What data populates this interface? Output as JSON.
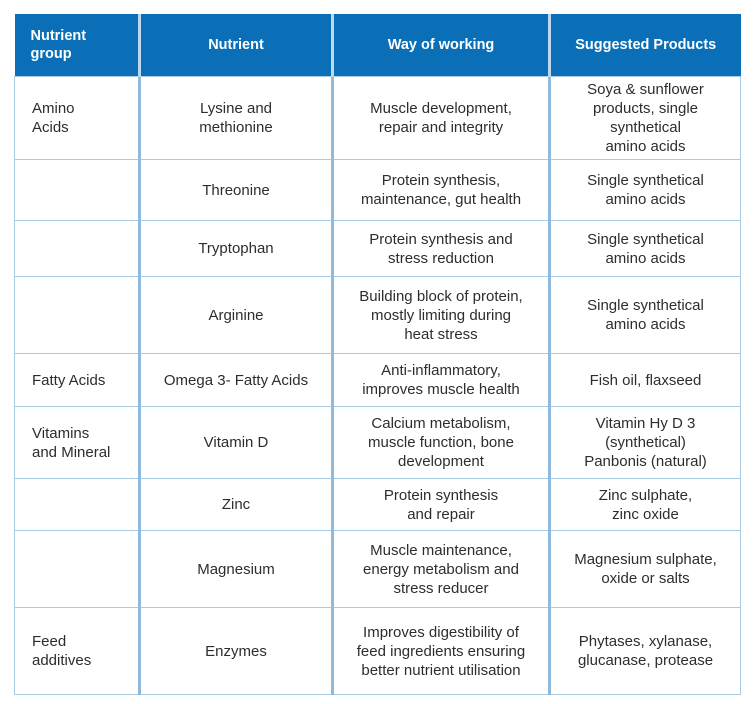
{
  "table": {
    "headers": [
      "Nutrient\ngroup",
      "Nutrient",
      "Way of working",
      "Suggested Products"
    ],
    "rows": [
      [
        "Amino\nAcids",
        "Lysine and\nmethionine",
        "Muscle development,\nrepair and integrity",
        "Soya & sunflower\nproducts, single\nsynthetical\namino acids"
      ],
      [
        "",
        "Threonine",
        "Protein synthesis,\nmaintenance, gut health",
        "Single synthetical\namino acids"
      ],
      [
        "",
        "Tryptophan",
        "Protein synthesis and\nstress reduction",
        "Single synthetical\namino acids"
      ],
      [
        "",
        "Arginine",
        "Building block of protein,\nmostly limiting during\nheat stress",
        "Single synthetical\namino acids"
      ],
      [
        "Fatty Acids",
        "Omega 3- Fatty Acids",
        "Anti-inflammatory,\nimproves muscle health",
        "Fish oil, flaxseed"
      ],
      [
        "Vitamins\nand Mineral",
        "Vitamin D",
        "Calcium metabolism,\nmuscle function, bone\ndevelopment",
        "Vitamin Hy D 3\n(synthetical)\nPanbonis (natural)"
      ],
      [
        "",
        "Zinc",
        "Protein synthesis\nand repair",
        "Zinc sulphate,\nzinc oxide"
      ],
      [
        "",
        "Magnesium",
        "Muscle maintenance,\nenergy metabolism and\nstress reducer",
        "Magnesium sulphate,\noxide or salts"
      ],
      [
        "Feed\nadditives",
        "Enzymes",
        "Improves digestibility of\nfeed ingredients ensuring\nbetter nutrient utilisation",
        "Phytases, xylanase,\nglucanase, protease"
      ]
    ]
  },
  "colors": {
    "header_bg": "#0a6fb7",
    "header_text": "#ffffff",
    "grid_line": "#a9cbe3",
    "body_text": "#2d2d2d"
  }
}
